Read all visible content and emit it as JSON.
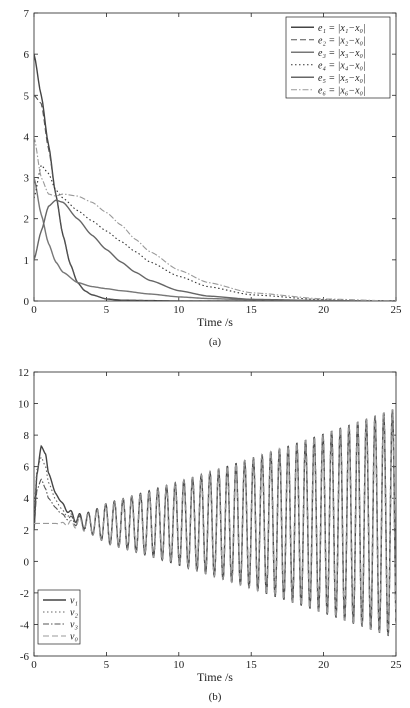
{
  "chart_data": [
    {
      "type": "line",
      "caption": "(a)",
      "xlabel": "Time /s",
      "ylabel": "",
      "xlim": [
        0,
        25
      ],
      "ylim": [
        0,
        7
      ],
      "xticks": [
        "0",
        "5",
        "10",
        "15",
        "20",
        "25"
      ],
      "yticks": [
        "0",
        "1",
        "2",
        "3",
        "4",
        "5",
        "6",
        "7"
      ],
      "grid": false,
      "legend": "top-right",
      "series": [
        {
          "name": "e₁ = |x₁−x₀|",
          "color": "#444444",
          "style": "solid",
          "x": [
            0,
            0.5,
            1,
            1.5,
            2,
            2.5,
            3,
            3.5,
            4,
            5,
            6,
            8,
            10,
            15,
            20,
            25
          ],
          "y": [
            6.0,
            5.0,
            3.8,
            2.6,
            1.6,
            0.9,
            0.45,
            0.25,
            0.15,
            0.05,
            0.02,
            0.01,
            0,
            0,
            0,
            0
          ]
        },
        {
          "name": "e₂ = |x₂−x₀|",
          "color": "#555555",
          "style": "dashed",
          "x": [
            0,
            0.5,
            1,
            1.5,
            2,
            2.5,
            3,
            3.5,
            4,
            5,
            6,
            8,
            10,
            15,
            20,
            25
          ],
          "y": [
            5.0,
            4.8,
            3.7,
            2.6,
            1.6,
            0.9,
            0.45,
            0.25,
            0.15,
            0.05,
            0.02,
            0.01,
            0,
            0,
            0,
            0
          ]
        },
        {
          "name": "e₃ = |x₃−x₀|",
          "color": "#777777",
          "style": "solid",
          "x": [
            0,
            0.5,
            1,
            1.5,
            2,
            3,
            4,
            5,
            6,
            8,
            10,
            12,
            15,
            20,
            25
          ],
          "y": [
            3.0,
            2.1,
            1.4,
            0.95,
            0.7,
            0.45,
            0.35,
            0.3,
            0.25,
            0.17,
            0.1,
            0.06,
            0.03,
            0.01,
            0
          ]
        },
        {
          "name": "e₄ = |x₄−x₀|",
          "color": "#333333",
          "style": "dotted",
          "x": [
            0,
            0.5,
            1,
            1.5,
            2,
            3,
            4,
            5,
            6,
            7,
            8,
            10,
            12,
            15,
            20,
            25
          ],
          "y": [
            2.5,
            3.3,
            3.1,
            2.7,
            2.5,
            2.2,
            1.95,
            1.7,
            1.45,
            1.2,
            0.95,
            0.6,
            0.35,
            0.15,
            0.03,
            0
          ]
        },
        {
          "name": "e₅ = |x₅−x₀|",
          "color": "#666666",
          "style": "solid",
          "x": [
            0,
            0.5,
            1,
            1.5,
            2,
            3,
            4,
            5,
            6,
            7,
            8,
            10,
            12,
            15,
            20,
            25
          ],
          "y": [
            1.0,
            1.7,
            2.3,
            2.45,
            2.4,
            2.0,
            1.6,
            1.25,
            0.95,
            0.7,
            0.5,
            0.25,
            0.12,
            0.04,
            0.01,
            0
          ]
        },
        {
          "name": "e₆ = |x₆−x₀|",
          "color": "#999999",
          "style": "dashdot",
          "x": [
            0,
            0.5,
            1,
            1.5,
            2,
            3,
            4,
            5,
            6,
            7,
            8,
            10,
            12,
            15,
            20,
            25
          ],
          "y": [
            4.0,
            3.0,
            2.6,
            2.55,
            2.6,
            2.55,
            2.4,
            2.15,
            1.85,
            1.5,
            1.2,
            0.75,
            0.45,
            0.2,
            0.05,
            0
          ]
        }
      ]
    },
    {
      "type": "line",
      "caption": "(b)",
      "xlabel": "Time /s",
      "ylabel": "",
      "xlim": [
        0,
        25
      ],
      "ylim": [
        -6,
        12
      ],
      "xticks": [
        "0",
        "5",
        "10",
        "15",
        "20",
        "25"
      ],
      "yticks": [
        "-6",
        "-4",
        "-2",
        "0",
        "2",
        "4",
        "6",
        "8",
        "10",
        "12"
      ],
      "grid": false,
      "legend": "bottom-left",
      "oscillation": {
        "center": 2.4,
        "amp_start": 0.15,
        "amp_end": 7.3,
        "period_s": 0.6
      },
      "series": [
        {
          "name": "v₁",
          "color": "#444444",
          "style": "solid",
          "transient_x": [
            0,
            0.2,
            0.5,
            0.8,
            1,
            1.5,
            2,
            2.5,
            3,
            3.5,
            4,
            5
          ],
          "transient_y": [
            2.0,
            5.5,
            7.3,
            6.8,
            5.6,
            4.3,
            3.8,
            3.3,
            2.9,
            2.7,
            2.6,
            2.45
          ]
        },
        {
          "name": "v₂",
          "color": "#666666",
          "style": "dotted",
          "transient_x": [
            0,
            0.2,
            0.5,
            0.8,
            1,
            1.5,
            2,
            2.5,
            3,
            3.5,
            4,
            5
          ],
          "transient_y": [
            3.0,
            5.8,
            6.6,
            6.0,
            5.0,
            3.9,
            3.3,
            3.0,
            2.8,
            2.6,
            2.5,
            2.45
          ]
        },
        {
          "name": "v₃",
          "color": "#555555",
          "style": "dashdot",
          "transient_x": [
            0,
            0.2,
            0.5,
            0.8,
            1,
            1.5,
            2,
            2.5,
            3,
            3.5,
            4,
            5
          ],
          "transient_y": [
            2.0,
            4.5,
            5.2,
            4.6,
            4.0,
            3.4,
            3.0,
            2.8,
            2.6,
            2.5,
            2.45,
            2.4
          ]
        },
        {
          "name": "v₀",
          "color": "#999999",
          "style": "dashed",
          "transient_x": [
            0,
            1,
            2,
            3,
            4,
            5
          ],
          "transient_y": [
            2.4,
            2.4,
            2.4,
            2.4,
            2.4,
            2.4
          ]
        }
      ]
    }
  ]
}
